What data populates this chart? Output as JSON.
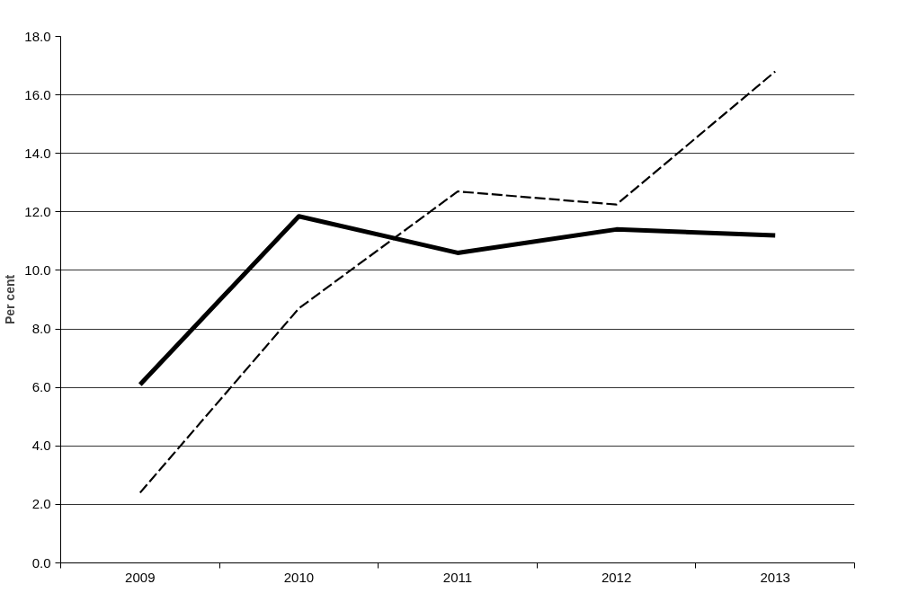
{
  "chart_data": {
    "type": "line",
    "ylabel": "Per cent",
    "categories": [
      "2009",
      "2010",
      "2011",
      "2012",
      "2013"
    ],
    "series": [
      {
        "color": "#000000",
        "line_style": "solid",
        "values": [
          6.1,
          11.85,
          10.6,
          11.4,
          11.2
        ]
      },
      {
        "color": "#000000",
        "line_style": "dashed",
        "values": [
          2.4,
          8.7,
          12.7,
          12.25,
          16.8
        ]
      }
    ],
    "ylim": [
      0,
      18
    ],
    "yticks": [
      {
        "value": 0,
        "label": "0.0"
      },
      {
        "value": 2,
        "label": "2.0"
      },
      {
        "value": 4,
        "label": "4.0"
      },
      {
        "value": 6,
        "label": "6.0"
      },
      {
        "value": 8,
        "label": "8.0"
      },
      {
        "value": 10,
        "label": "10.0"
      },
      {
        "value": 12,
        "label": "12.0"
      },
      {
        "value": 14,
        "label": "14.0"
      },
      {
        "value": 16,
        "label": "16.0"
      },
      {
        "value": 18,
        "label": "18.0"
      }
    ],
    "grid": "y",
    "marker": "none"
  }
}
